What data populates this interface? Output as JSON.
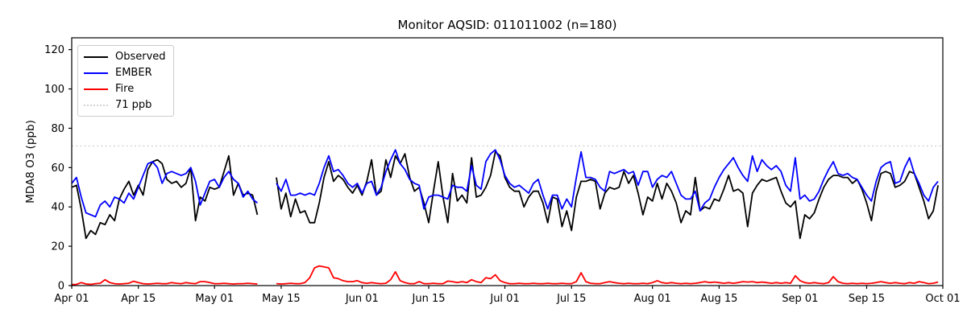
{
  "chart_data": {
    "type": "line",
    "title": "Monitor AQSID: 011011002 (n=180)",
    "ylabel": "MDA8 O3 (ppb)",
    "xlabel": "",
    "n_label": "n=180",
    "grid": false,
    "legend_position": "upper left",
    "x_domain": [
      0,
      183
    ],
    "ylim": [
      0,
      126
    ],
    "yticks": [
      0,
      20,
      40,
      60,
      80,
      100,
      120
    ],
    "xticks": [
      {
        "day": 0,
        "label": "Apr 01"
      },
      {
        "day": 14,
        "label": "Apr 15"
      },
      {
        "day": 30,
        "label": "May 01"
      },
      {
        "day": 44,
        "label": "May 15"
      },
      {
        "day": 61,
        "label": "Jun 01"
      },
      {
        "day": 75,
        "label": "Jun 15"
      },
      {
        "day": 91,
        "label": "Jul 01"
      },
      {
        "day": 105,
        "label": "Jul 15"
      },
      {
        "day": 122,
        "label": "Aug 01"
      },
      {
        "day": 136,
        "label": "Aug 15"
      },
      {
        "day": 153,
        "label": "Sep 01"
      },
      {
        "day": 167,
        "label": "Sep 15"
      },
      {
        "day": 183,
        "label": "Oct 01"
      }
    ],
    "threshold": {
      "label": "71 ppb",
      "value": 71,
      "color": "#d3d3d3",
      "style": "dotted"
    },
    "series": [
      {
        "id": "observed",
        "name": "Observed",
        "color": "#000000",
        "values": [
          50,
          51,
          39,
          24,
          28,
          26,
          32,
          31,
          36,
          33,
          44,
          49,
          53,
          46,
          51,
          46,
          59,
          63,
          64,
          62,
          54,
          52,
          53,
          50,
          52,
          60,
          33,
          45,
          43,
          50,
          49,
          50,
          58,
          66,
          46,
          52,
          46,
          47,
          46,
          36,
          null,
          null,
          null,
          55,
          39,
          47,
          35,
          44,
          37,
          38,
          32,
          32,
          42,
          55,
          63,
          53,
          56,
          54,
          50,
          47,
          51,
          46,
          53,
          64,
          46,
          48,
          64,
          55,
          66,
          62,
          67,
          55,
          48,
          50,
          42,
          32,
          48,
          63,
          45,
          32,
          57,
          43,
          46,
          42,
          65,
          45,
          46,
          50,
          56,
          68,
          66,
          55,
          50,
          48,
          48,
          40,
          45,
          48,
          48,
          42,
          32,
          45,
          44,
          30,
          38,
          28,
          45,
          53,
          53,
          54,
          53,
          39,
          47,
          50,
          49,
          50,
          58,
          52,
          56,
          47,
          36,
          45,
          43,
          52,
          44,
          52,
          48,
          42,
          32,
          38,
          36,
          55,
          38,
          40,
          39,
          44,
          43,
          49,
          56,
          48,
          49,
          47,
          30,
          47,
          51,
          54,
          53,
          54,
          55,
          48,
          42,
          40,
          43,
          24,
          36,
          34,
          37,
          44,
          50,
          54,
          56,
          56,
          55,
          55,
          52,
          54,
          49,
          42,
          33,
          48,
          57,
          58,
          57,
          50,
          51,
          53,
          58,
          57,
          50,
          43,
          34,
          38,
          51
        ]
      },
      {
        "id": "ember",
        "name": "EMBER",
        "color": "#0000ff",
        "values": [
          52,
          55,
          45,
          37,
          36,
          35,
          41,
          43,
          40,
          45,
          44,
          42,
          47,
          44,
          50,
          56,
          62,
          63,
          60,
          52,
          57,
          58,
          57,
          56,
          57,
          60,
          53,
          41,
          47,
          53,
          54,
          50,
          55,
          58,
          54,
          52,
          45,
          48,
          44,
          42,
          null,
          null,
          null,
          52,
          48,
          54,
          46,
          46,
          47,
          46,
          47,
          46,
          52,
          60,
          66,
          58,
          59,
          56,
          52,
          50,
          52,
          47,
          52,
          53,
          46,
          50,
          58,
          64,
          69,
          62,
          59,
          54,
          52,
          51,
          39,
          45,
          46,
          46,
          45,
          44,
          51,
          50,
          50,
          48,
          61,
          51,
          49,
          63,
          67,
          69,
          64,
          56,
          52,
          50,
          51,
          49,
          47,
          52,
          54,
          46,
          39,
          46,
          46,
          39,
          44,
          40,
          55,
          68,
          55,
          55,
          54,
          50,
          48,
          58,
          57,
          58,
          59,
          57,
          58,
          51,
          58,
          58,
          50,
          54,
          56,
          55,
          58,
          52,
          46,
          44,
          44,
          48,
          38,
          42,
          44,
          50,
          55,
          59,
          62,
          65,
          60,
          56,
          53,
          66,
          58,
          64,
          61,
          59,
          61,
          58,
          51,
          48,
          65,
          44,
          46,
          43,
          44,
          48,
          54,
          59,
          63,
          57,
          56,
          57,
          55,
          54,
          50,
          46,
          43,
          53,
          60,
          62,
          63,
          52,
          53,
          60,
          65,
          57,
          52,
          46,
          43,
          50,
          53
        ]
      },
      {
        "id": "fire",
        "name": "Fire",
        "color": "#ff0000",
        "values": [
          0.5,
          0.6,
          1.5,
          0.8,
          0.6,
          1,
          1.2,
          3,
          1.5,
          1,
          0.8,
          1,
          1.2,
          2.2,
          1.5,
          1,
          0.8,
          1,
          1.2,
          1,
          1,
          1.5,
          1.2,
          1,
          1.5,
          1.2,
          1,
          2,
          2,
          1.5,
          1,
          1,
          1.2,
          1,
          0.8,
          1,
          1,
          1.2,
          1,
          0.8,
          null,
          null,
          null,
          1,
          0.8,
          1,
          1.2,
          1,
          1,
          1.5,
          4,
          9,
          10,
          9.5,
          9,
          4,
          3.5,
          2.5,
          2,
          2,
          2.5,
          1.5,
          1.2,
          1.5,
          1.2,
          1,
          1.2,
          3,
          7,
          2.5,
          1.5,
          1,
          1,
          2,
          1,
          1,
          1.2,
          1,
          1,
          2.3,
          2,
          1.5,
          2,
          1.5,
          3,
          2,
          1.5,
          4,
          3.5,
          5.5,
          2.5,
          1.5,
          1,
          1,
          1.2,
          1,
          1,
          1.2,
          1,
          1,
          1.2,
          1,
          1,
          1.2,
          1,
          1,
          2,
          6.5,
          2,
          1.2,
          1,
          1,
          1.5,
          2,
          1.5,
          1.2,
          1,
          1.2,
          1,
          1,
          1.2,
          1,
          1.5,
          2.5,
          1.5,
          1.2,
          1.5,
          1.2,
          1,
          1.2,
          1,
          1.2,
          1.5,
          2,
          1.5,
          1.8,
          1.5,
          1.2,
          1.5,
          1.2,
          1.5,
          2,
          1.8,
          2,
          1.5,
          1.8,
          1.5,
          1.2,
          1.5,
          1.2,
          1.5,
          1.2,
          5,
          2.5,
          1.5,
          1.2,
          1.5,
          1.2,
          1,
          1.5,
          4.5,
          2,
          1.2,
          1,
          1.2,
          1,
          1.2,
          1,
          1.2,
          1.5,
          2,
          1.5,
          1.2,
          1.5,
          1.2,
          1,
          1.5,
          1.2,
          2,
          1.5,
          1,
          1.2,
          1.8
        ]
      }
    ],
    "legend": [
      {
        "label": "Observed",
        "color": "#000000",
        "style": "solid"
      },
      {
        "label": "EMBER",
        "color": "#0000ff",
        "style": "solid"
      },
      {
        "label": "Fire",
        "color": "#ff0000",
        "style": "solid"
      },
      {
        "label": "71 ppb",
        "color": "#d3d3d3",
        "style": "dotted"
      }
    ]
  }
}
